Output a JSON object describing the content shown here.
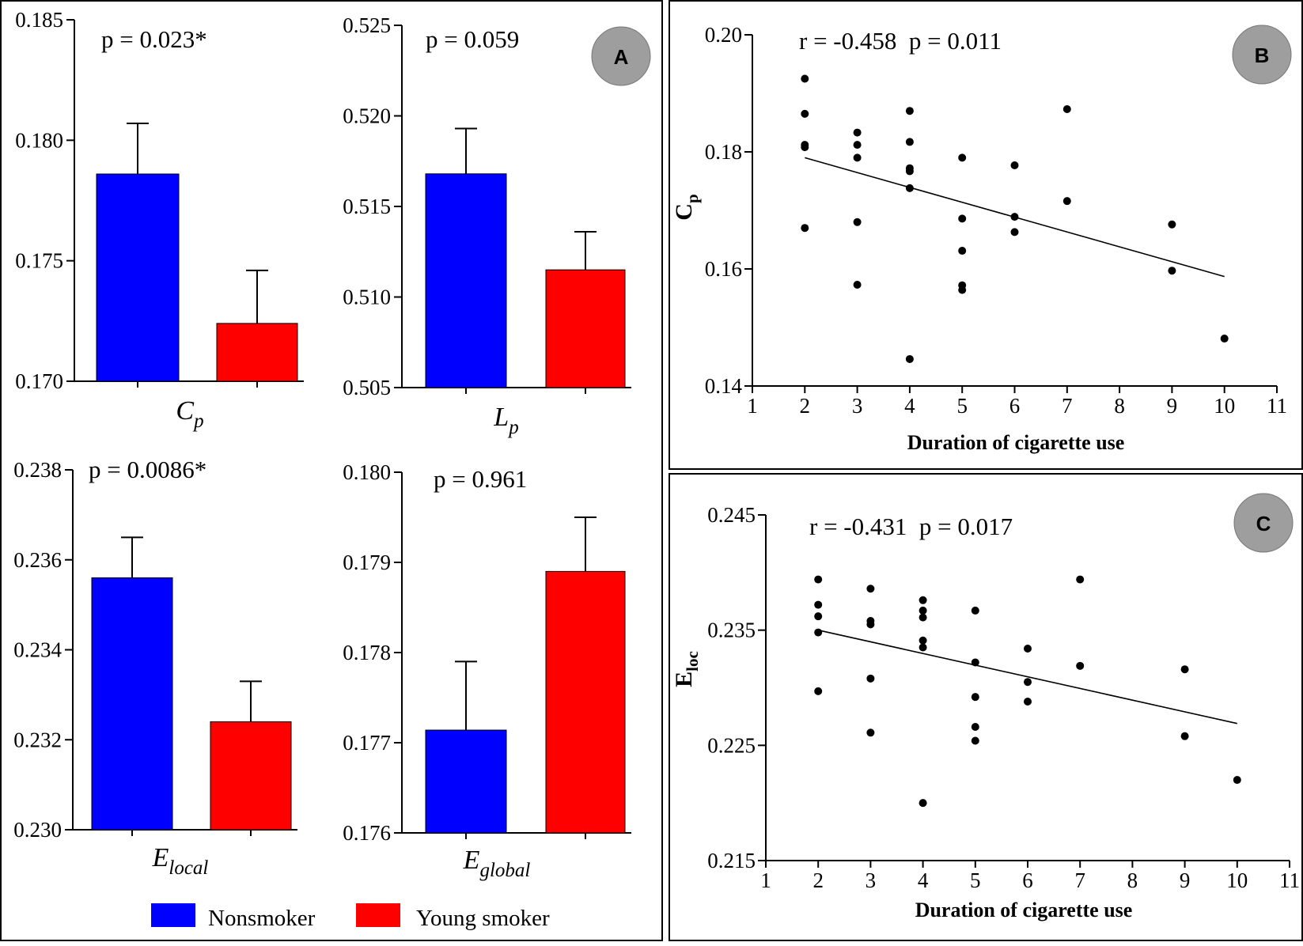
{
  "colors": {
    "nonsmoker": "#0000ff",
    "young_smoker": "#ff0000",
    "badge": "#9e9e9e",
    "axis": "#000000"
  },
  "panels": {
    "A": {
      "badge": "A"
    },
    "B": {
      "badge": "B"
    },
    "C": {
      "badge": "C"
    }
  },
  "legend": {
    "items": [
      {
        "label": "Nonsmoker"
      },
      {
        "label": "Young smoker"
      }
    ]
  },
  "chart_data": [
    {
      "id": "A1",
      "type": "bar",
      "xlabel": {
        "main": "C",
        "sub": "p"
      },
      "annotation": "p = 0.023*",
      "ylim": [
        0.17,
        0.185
      ],
      "yticks": [
        "0.170",
        "0.175",
        "0.180",
        "0.185"
      ],
      "series": [
        {
          "name": "Nonsmoker",
          "values": [
            0.1786
          ],
          "error": [
            0.0021
          ]
        },
        {
          "name": "Young smoker",
          "values": [
            0.1724
          ],
          "error": [
            0.0022
          ]
        }
      ]
    },
    {
      "id": "A2",
      "type": "bar",
      "xlabel": {
        "main": "L",
        "sub": "p"
      },
      "annotation": "p = 0.059",
      "ylim": [
        0.505,
        0.525
      ],
      "yticks": [
        "0.505",
        "0.510",
        "0.515",
        "0.520",
        "0.525"
      ],
      "series": [
        {
          "name": "Nonsmoker",
          "values": [
            0.5168
          ],
          "error": [
            0.0025
          ]
        },
        {
          "name": "Young smoker",
          "values": [
            0.5115
          ],
          "error": [
            0.0021
          ]
        }
      ]
    },
    {
      "id": "A3",
      "type": "bar",
      "xlabel": {
        "main": "E",
        "sub": "local"
      },
      "annotation": "p = 0.0086*",
      "ylim": [
        0.23,
        0.238
      ],
      "yticks": [
        "0.230",
        "0.232",
        "0.234",
        "0.236",
        "0.238"
      ],
      "series": [
        {
          "name": "Nonsmoker",
          "values": [
            0.2356
          ],
          "error": [
            0.0009
          ]
        },
        {
          "name": "Young smoker",
          "values": [
            0.2324
          ],
          "error": [
            0.0009
          ]
        }
      ]
    },
    {
      "id": "A4",
      "type": "bar",
      "xlabel": {
        "main": "E",
        "sub": "global"
      },
      "annotation": "p = 0.961",
      "ylim": [
        0.176,
        0.18
      ],
      "yticks": [
        "0.176",
        "0.177",
        "0.178",
        "0.179",
        "0.180"
      ],
      "series": [
        {
          "name": "Nonsmoker",
          "values": [
            0.17714
          ],
          "error": [
            0.00076
          ]
        },
        {
          "name": "Young smoker",
          "values": [
            0.1789
          ],
          "error": [
            0.0006
          ]
        }
      ]
    },
    {
      "id": "B",
      "type": "scatter",
      "annotation": "r = -0.458  p = 0.011",
      "xlabel": "Duration of cigarette use",
      "ylabel": {
        "main": "C",
        "sub": "p"
      },
      "xlim": [
        1,
        11
      ],
      "ylim": [
        0.14,
        0.2
      ],
      "xticks": [
        "1",
        "2",
        "3",
        "4",
        "5",
        "6",
        "7",
        "8",
        "9",
        "10",
        "11"
      ],
      "yticks": [
        "0.14",
        "0.16",
        "0.18",
        "0.20"
      ],
      "points": [
        [
          2,
          0.1925
        ],
        [
          2,
          0.1865
        ],
        [
          2,
          0.1812
        ],
        [
          2,
          0.1808
        ],
        [
          2,
          0.167
        ],
        [
          3,
          0.1833
        ],
        [
          3,
          0.1812
        ],
        [
          3,
          0.179
        ],
        [
          3,
          0.168
        ],
        [
          3,
          0.1573
        ],
        [
          4,
          0.187
        ],
        [
          4,
          0.1817
        ],
        [
          4,
          0.1772
        ],
        [
          4,
          0.1767
        ],
        [
          4,
          0.1738
        ],
        [
          4,
          0.1446
        ],
        [
          5,
          0.179
        ],
        [
          5,
          0.1686
        ],
        [
          5,
          0.1631
        ],
        [
          5,
          0.1572
        ],
        [
          5,
          0.1564
        ],
        [
          6,
          0.1777
        ],
        [
          6,
          0.1689
        ],
        [
          6,
          0.1663
        ],
        [
          7,
          0.1873
        ],
        [
          7,
          0.1716
        ],
        [
          9,
          0.1676
        ],
        [
          9,
          0.1597
        ],
        [
          10,
          0.1481
        ]
      ],
      "fit": [
        [
          2,
          0.179
        ],
        [
          10,
          0.1587
        ]
      ]
    },
    {
      "id": "C",
      "type": "scatter",
      "annotation": "r = -0.431  p = 0.017",
      "xlabel": "Duration of cigarette use",
      "ylabel": {
        "main": "E",
        "sub": "loc"
      },
      "xlim": [
        1,
        11
      ],
      "ylim": [
        0.215,
        0.245
      ],
      "xticks": [
        "1",
        "2",
        "3",
        "4",
        "5",
        "6",
        "7",
        "8",
        "9",
        "10",
        "11"
      ],
      "yticks": [
        "0.215",
        "0.225",
        "0.235",
        "0.245"
      ],
      "points": [
        [
          2,
          0.2394
        ],
        [
          2,
          0.2372
        ],
        [
          2,
          0.2362
        ],
        [
          2,
          0.2348
        ],
        [
          2,
          0.2297
        ],
        [
          3,
          0.2386
        ],
        [
          3,
          0.2358
        ],
        [
          3,
          0.2355
        ],
        [
          3,
          0.2308
        ],
        [
          3,
          0.2261
        ],
        [
          4,
          0.2376
        ],
        [
          4,
          0.2367
        ],
        [
          4,
          0.2361
        ],
        [
          4,
          0.2341
        ],
        [
          4,
          0.2335
        ],
        [
          4,
          0.22
        ],
        [
          5,
          0.2367
        ],
        [
          5,
          0.2322
        ],
        [
          5,
          0.2292
        ],
        [
          5,
          0.2266
        ],
        [
          5,
          0.2254
        ],
        [
          6,
          0.2334
        ],
        [
          6,
          0.2305
        ],
        [
          6,
          0.2288
        ],
        [
          7,
          0.2394
        ],
        [
          7,
          0.2319
        ],
        [
          9,
          0.2316
        ],
        [
          9,
          0.2258
        ],
        [
          10,
          0.222
        ]
      ],
      "fit": [
        [
          2,
          0.235
        ],
        [
          10,
          0.2269
        ]
      ]
    }
  ]
}
